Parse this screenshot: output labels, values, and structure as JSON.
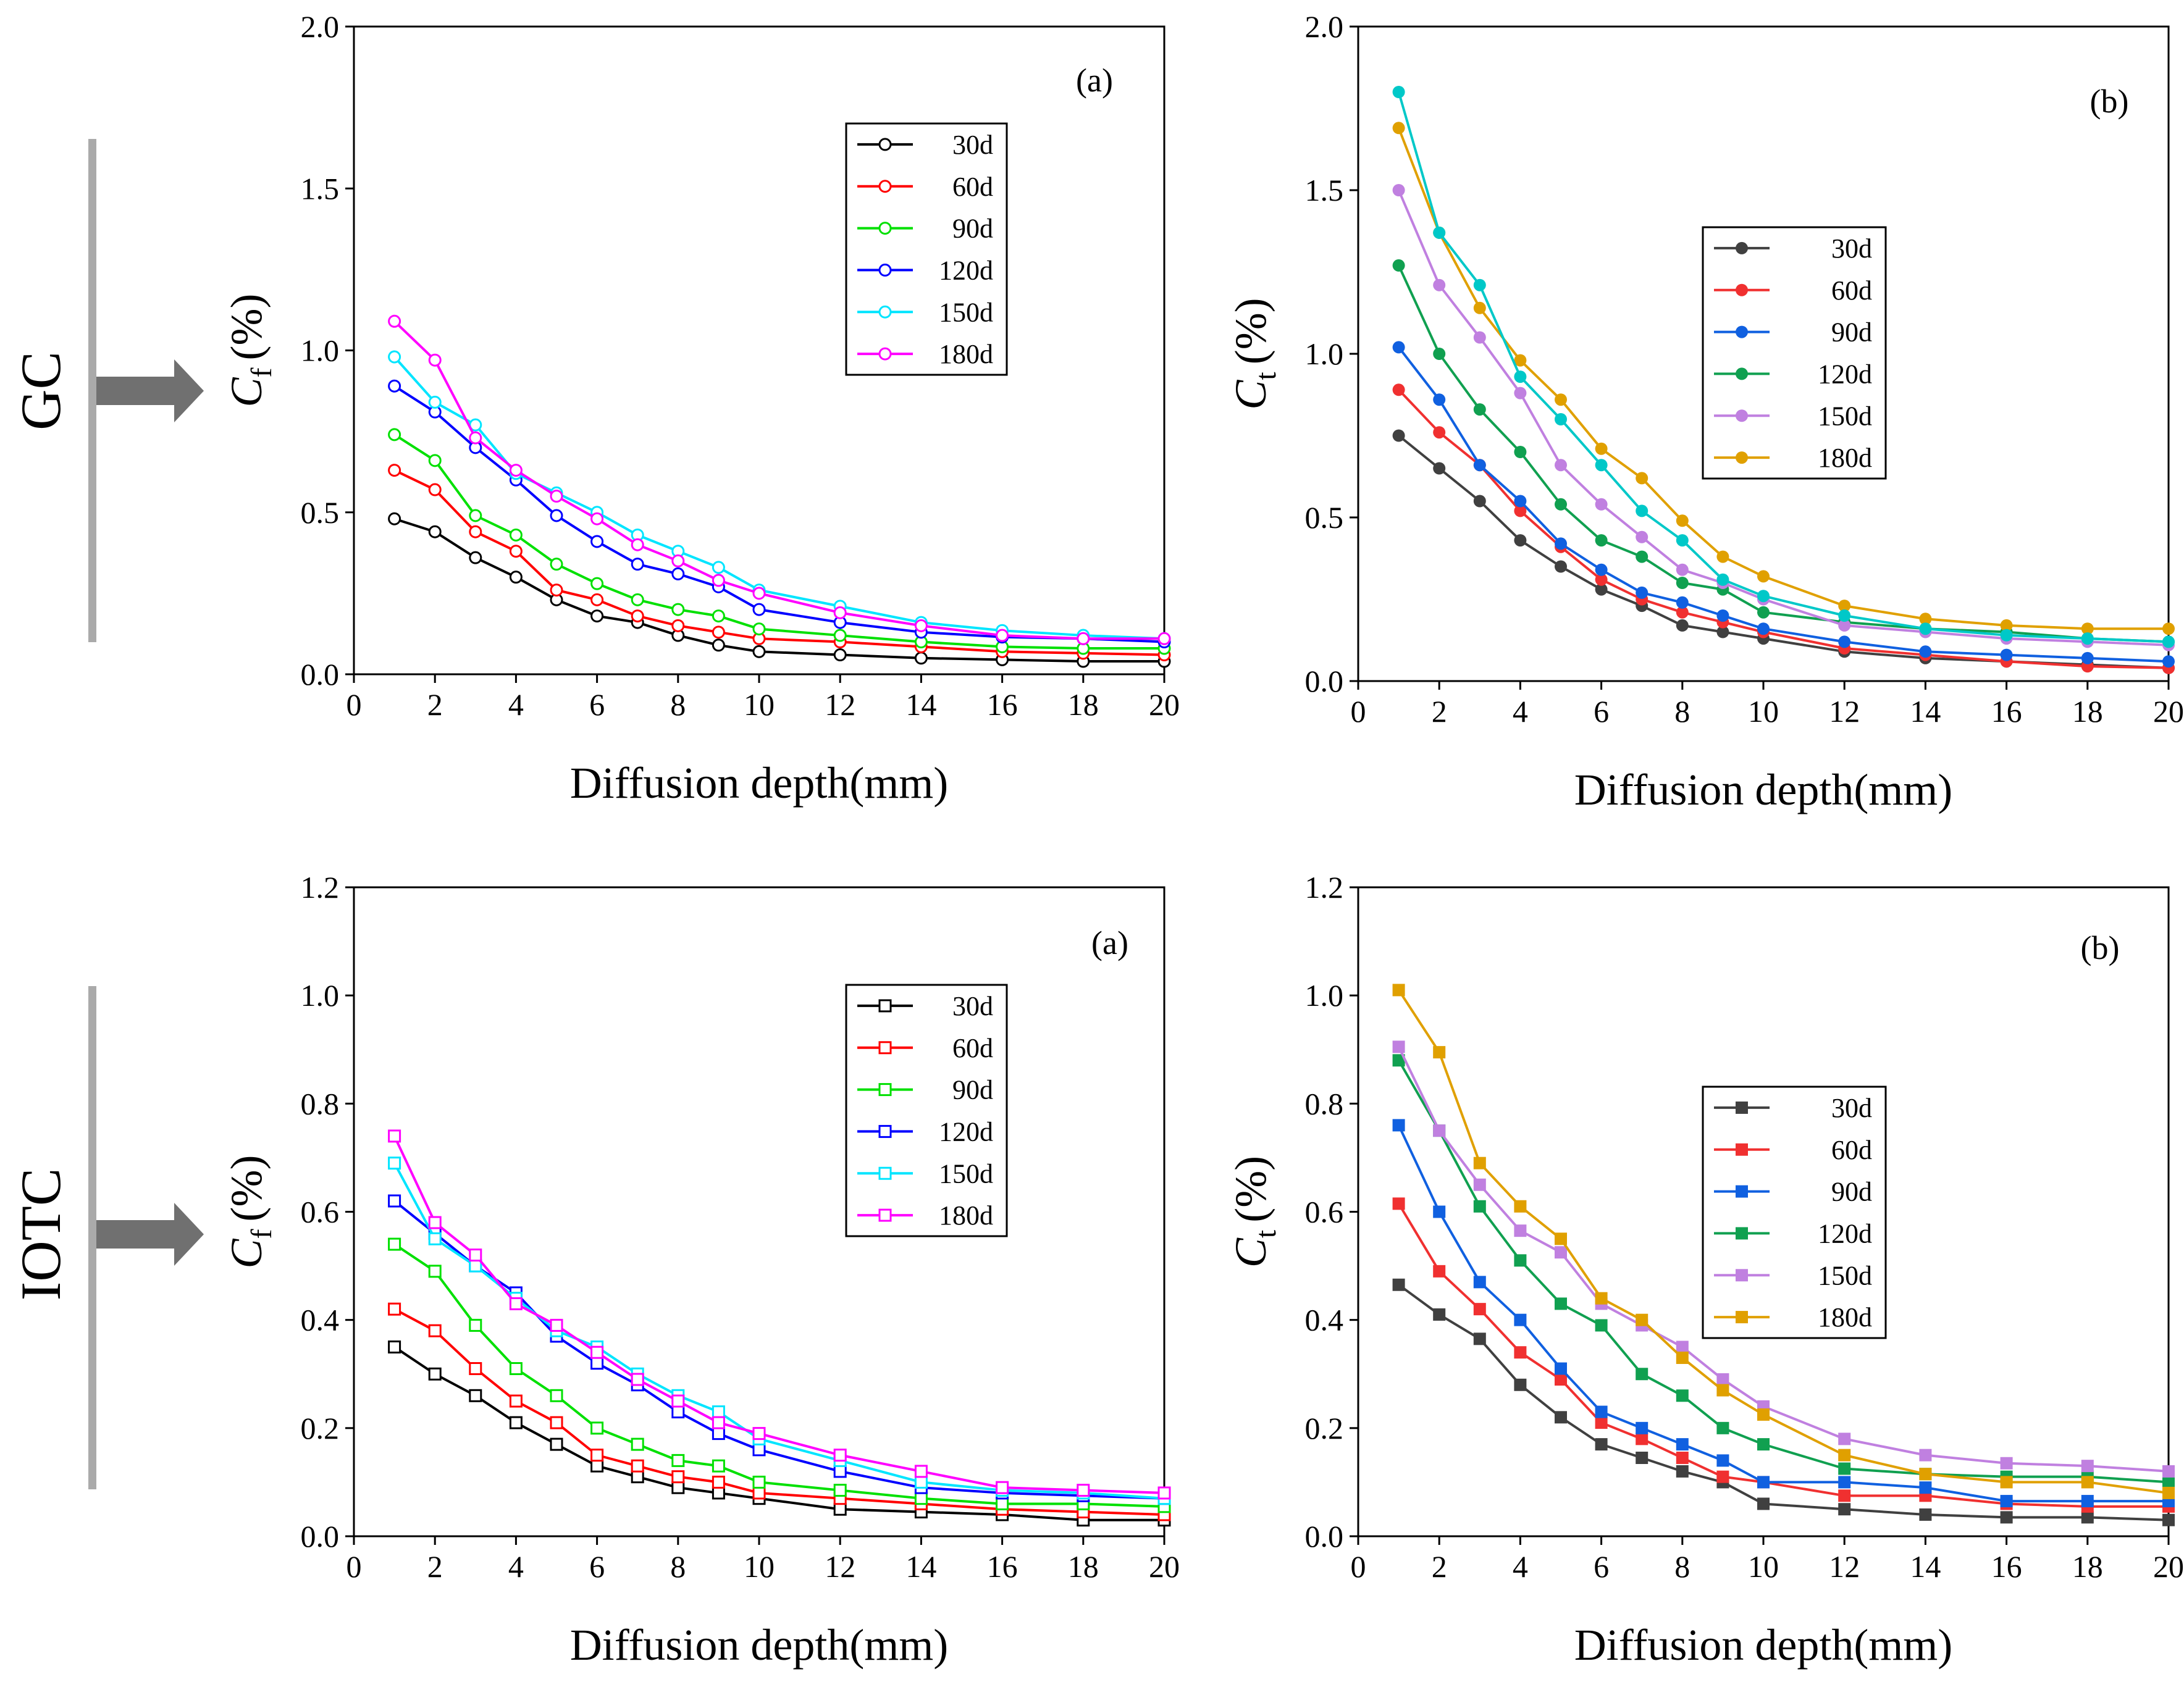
{
  "colors": {
    "side_bar": "#aaaaaa",
    "arrow": "#707070",
    "axis": "#000000"
  },
  "side_labels": [
    {
      "text": "GC",
      "icon": "right-arrow-icon"
    },
    {
      "text": "IOTC",
      "icon": "right-arrow-icon"
    }
  ],
  "chart_data": [
    {
      "id": "gc-free",
      "type": "line",
      "panel_label": "(a)",
      "xlabel": "Diffusion depth(mm)",
      "ylabel_main": "C",
      "ylabel_sub": "f",
      "ylabel_unit": "(%)",
      "marker": "circle-open",
      "x": [
        1,
        2,
        3,
        4,
        5,
        6,
        7,
        8,
        9,
        10,
        12,
        14,
        16,
        18,
        20
      ],
      "xlim": [
        0,
        20
      ],
      "ylim": [
        0,
        2.0
      ],
      "xticks": [
        0,
        2,
        4,
        6,
        8,
        10,
        12,
        14,
        16,
        18,
        20
      ],
      "yticks": [
        0.0,
        0.5,
        1.0,
        1.5,
        2.0
      ],
      "ytick_labels": [
        "0.0",
        "0.5",
        "1.0",
        "1.5",
        "2.0"
      ],
      "legend_position": "upper-right",
      "series": [
        {
          "name": "30d",
          "color": "#000000",
          "values": [
            0.48,
            0.44,
            0.36,
            0.3,
            0.23,
            0.18,
            0.16,
            0.12,
            0.09,
            0.07,
            0.06,
            0.05,
            0.045,
            0.04,
            0.04
          ]
        },
        {
          "name": "60d",
          "color": "#ff0000",
          "values": [
            0.63,
            0.57,
            0.44,
            0.38,
            0.26,
            0.23,
            0.18,
            0.15,
            0.13,
            0.11,
            0.1,
            0.085,
            0.07,
            0.065,
            0.06
          ]
        },
        {
          "name": "90d",
          "color": "#00e000",
          "values": [
            0.74,
            0.66,
            0.49,
            0.43,
            0.34,
            0.28,
            0.23,
            0.2,
            0.18,
            0.14,
            0.12,
            0.1,
            0.085,
            0.08,
            0.08
          ]
        },
        {
          "name": "120d",
          "color": "#0000ff",
          "values": [
            0.89,
            0.81,
            0.7,
            0.6,
            0.49,
            0.41,
            0.34,
            0.31,
            0.27,
            0.2,
            0.16,
            0.13,
            0.115,
            0.11,
            0.1
          ]
        },
        {
          "name": "150d",
          "color": "#00e5ff",
          "values": [
            0.98,
            0.84,
            0.77,
            0.62,
            0.56,
            0.5,
            0.43,
            0.38,
            0.33,
            0.26,
            0.21,
            0.16,
            0.135,
            0.12,
            0.11
          ]
        },
        {
          "name": "180d",
          "color": "#ff00ff",
          "values": [
            1.09,
            0.97,
            0.73,
            0.63,
            0.55,
            0.48,
            0.4,
            0.35,
            0.29,
            0.25,
            0.19,
            0.15,
            0.12,
            0.11,
            0.11
          ]
        }
      ]
    },
    {
      "id": "gc-total",
      "type": "line",
      "panel_label": "(b)",
      "xlabel": "Diffusion depth(mm)",
      "ylabel_main": "C",
      "ylabel_sub": "t",
      "ylabel_unit": "(%)",
      "marker": "circle-filled",
      "x": [
        1,
        2,
        3,
        4,
        5,
        6,
        7,
        8,
        9,
        10,
        12,
        14,
        16,
        18,
        20
      ],
      "xlim": [
        0,
        20
      ],
      "ylim": [
        0,
        2.0
      ],
      "xticks": [
        0,
        2,
        4,
        6,
        8,
        10,
        12,
        14,
        16,
        18,
        20
      ],
      "yticks": [
        0.0,
        0.5,
        1.0,
        1.5,
        2.0
      ],
      "ytick_labels": [
        "0.0",
        "0.5",
        "1.0",
        "1.5",
        "2.0"
      ],
      "legend_position": "middle-right",
      "series": [
        {
          "name": "30d",
          "color": "#404040",
          "values": [
            0.75,
            0.65,
            0.55,
            0.43,
            0.35,
            0.28,
            0.23,
            0.17,
            0.15,
            0.13,
            0.09,
            0.07,
            0.06,
            0.05,
            0.04
          ]
        },
        {
          "name": "60d",
          "color": "#f03030",
          "values": [
            0.89,
            0.76,
            0.66,
            0.52,
            0.41,
            0.31,
            0.25,
            0.21,
            0.18,
            0.15,
            0.1,
            0.08,
            0.06,
            0.045,
            0.04
          ]
        },
        {
          "name": "90d",
          "color": "#1060e0",
          "values": [
            1.02,
            0.86,
            0.66,
            0.55,
            0.42,
            0.34,
            0.27,
            0.24,
            0.2,
            0.16,
            0.12,
            0.09,
            0.08,
            0.07,
            0.06
          ]
        },
        {
          "name": "120d",
          "color": "#10a050",
          "values": [
            1.27,
            1.0,
            0.83,
            0.7,
            0.54,
            0.43,
            0.38,
            0.3,
            0.28,
            0.21,
            0.18,
            0.16,
            0.15,
            0.13,
            0.12
          ]
        },
        {
          "name": "150d",
          "color": "#c080e0",
          "values": [
            1.5,
            1.21,
            1.05,
            0.88,
            0.66,
            0.54,
            0.44,
            0.34,
            0.3,
            0.25,
            0.17,
            0.15,
            0.13,
            0.12,
            0.11
          ]
        },
        {
          "name": "180d",
          "color": "#e0a000",
          "values": [
            1.69,
            1.37,
            1.14,
            0.98,
            0.86,
            0.71,
            0.62,
            0.49,
            0.38,
            0.32,
            0.23,
            0.19,
            0.17,
            0.16,
            0.16
          ]
        },
        {
          "name": "",
          "color": "#00c8c8",
          "values": [
            1.8,
            1.37,
            1.21,
            0.93,
            0.8,
            0.66,
            0.52,
            0.43,
            0.31,
            0.26,
            0.2,
            0.16,
            0.14,
            0.13,
            0.12
          ]
        }
      ]
    },
    {
      "id": "iotc-free",
      "type": "line",
      "panel_label": "(a)",
      "xlabel": "Diffusion depth(mm)",
      "ylabel_main": "C",
      "ylabel_sub": "f",
      "ylabel_unit": "(%)",
      "marker": "square-open",
      "x": [
        1,
        2,
        3,
        4,
        5,
        6,
        7,
        8,
        9,
        10,
        12,
        14,
        16,
        18,
        20
      ],
      "xlim": [
        0,
        20
      ],
      "ylim": [
        0,
        1.2
      ],
      "xticks": [
        0,
        2,
        4,
        6,
        8,
        10,
        12,
        14,
        16,
        18,
        20
      ],
      "yticks": [
        0.0,
        0.2,
        0.4,
        0.6,
        0.8,
        1.0,
        1.2
      ],
      "ytick_labels": [
        "0.0",
        "0.2",
        "0.4",
        "0.6",
        "0.8",
        "1.0",
        "1.2"
      ],
      "legend_position": "upper-right",
      "series": [
        {
          "name": "30d",
          "color": "#000000",
          "values": [
            0.35,
            0.3,
            0.26,
            0.21,
            0.17,
            0.13,
            0.11,
            0.09,
            0.08,
            0.07,
            0.05,
            0.045,
            0.04,
            0.03,
            0.03
          ]
        },
        {
          "name": "60d",
          "color": "#ff0000",
          "values": [
            0.42,
            0.38,
            0.31,
            0.25,
            0.21,
            0.15,
            0.13,
            0.11,
            0.1,
            0.08,
            0.07,
            0.06,
            0.05,
            0.045,
            0.04
          ]
        },
        {
          "name": "90d",
          "color": "#00e000",
          "values": [
            0.54,
            0.49,
            0.39,
            0.31,
            0.26,
            0.2,
            0.17,
            0.14,
            0.13,
            0.1,
            0.085,
            0.07,
            0.06,
            0.06,
            0.055
          ]
        },
        {
          "name": "120d",
          "color": "#0000ff",
          "values": [
            0.62,
            0.56,
            0.5,
            0.45,
            0.37,
            0.32,
            0.28,
            0.23,
            0.19,
            0.16,
            0.12,
            0.09,
            0.08,
            0.075,
            0.07
          ]
        },
        {
          "name": "150d",
          "color": "#00e5ff",
          "values": [
            0.69,
            0.55,
            0.5,
            0.44,
            0.38,
            0.35,
            0.3,
            0.26,
            0.23,
            0.18,
            0.14,
            0.1,
            0.085,
            0.08,
            0.07
          ]
        },
        {
          "name": "180d",
          "color": "#ff00ff",
          "values": [
            0.74,
            0.58,
            0.52,
            0.43,
            0.39,
            0.34,
            0.29,
            0.25,
            0.21,
            0.19,
            0.15,
            0.12,
            0.09,
            0.085,
            0.08
          ]
        }
      ]
    },
    {
      "id": "iotc-total",
      "type": "line",
      "panel_label": "(b)",
      "xlabel": "Diffusion depth(mm)",
      "ylabel_main": "C",
      "ylabel_sub": "t",
      "ylabel_unit": "(%)",
      "marker": "square-filled",
      "x": [
        1,
        2,
        3,
        4,
        5,
        6,
        7,
        8,
        9,
        10,
        12,
        14,
        16,
        18,
        20
      ],
      "xlim": [
        0,
        20
      ],
      "ylim": [
        0,
        1.2
      ],
      "xticks": [
        0,
        2,
        4,
        6,
        8,
        10,
        12,
        14,
        16,
        18,
        20
      ],
      "yticks": [
        0.0,
        0.2,
        0.4,
        0.6,
        0.8,
        1.0,
        1.2
      ],
      "ytick_labels": [
        "0.0",
        "0.2",
        "0.4",
        "0.6",
        "0.8",
        "1.0",
        "1.2"
      ],
      "legend_position": "middle-right",
      "series": [
        {
          "name": "30d",
          "color": "#404040",
          "values": [
            0.465,
            0.41,
            0.365,
            0.28,
            0.22,
            0.17,
            0.145,
            0.12,
            0.1,
            0.06,
            0.05,
            0.04,
            0.035,
            0.035,
            0.03
          ]
        },
        {
          "name": "60d",
          "color": "#f03030",
          "values": [
            0.615,
            0.49,
            0.42,
            0.34,
            0.29,
            0.21,
            0.18,
            0.145,
            0.11,
            0.1,
            0.075,
            0.075,
            0.06,
            0.055,
            0.055
          ]
        },
        {
          "name": "90d",
          "color": "#1060e0",
          "values": [
            0.76,
            0.6,
            0.47,
            0.4,
            0.31,
            0.23,
            0.2,
            0.17,
            0.14,
            0.1,
            0.1,
            0.09,
            0.065,
            0.065,
            0.065
          ]
        },
        {
          "name": "120d",
          "color": "#10a050",
          "values": [
            0.88,
            0.75,
            0.61,
            0.51,
            0.43,
            0.39,
            0.3,
            0.26,
            0.2,
            0.17,
            0.125,
            0.115,
            0.11,
            0.11,
            0.1
          ]
        },
        {
          "name": "150d",
          "color": "#c080e0",
          "values": [
            0.905,
            0.75,
            0.65,
            0.565,
            0.525,
            0.43,
            0.39,
            0.35,
            0.29,
            0.24,
            0.18,
            0.15,
            0.135,
            0.13,
            0.12
          ]
        },
        {
          "name": "180d",
          "color": "#e0a000",
          "values": [
            1.01,
            0.895,
            0.69,
            0.61,
            0.55,
            0.44,
            0.4,
            0.33,
            0.27,
            0.225,
            0.15,
            0.115,
            0.1,
            0.1,
            0.08
          ]
        }
      ]
    }
  ]
}
